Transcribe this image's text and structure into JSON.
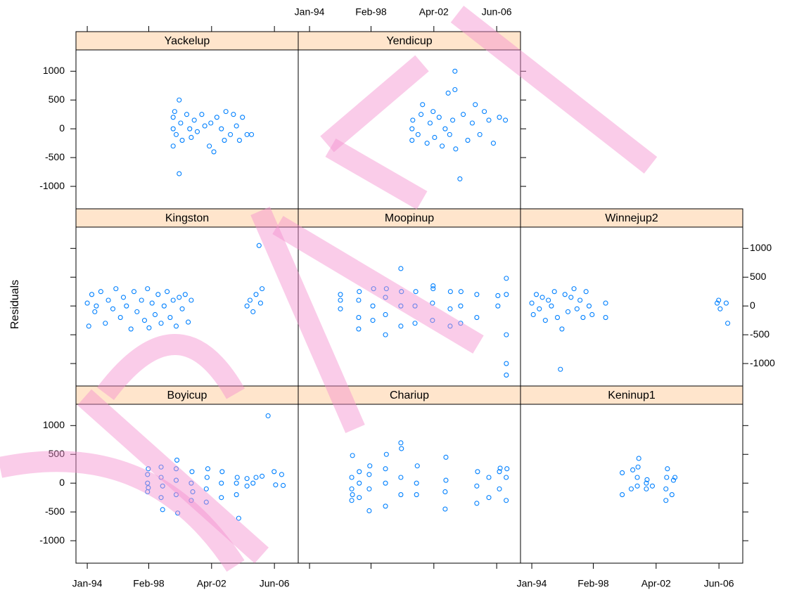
{
  "chart_data": {
    "type": "scatter",
    "ylabel": "Residuals",
    "xlim": [
      1993.25,
      2008.0
    ],
    "ylim": [
      -1390,
      1370
    ],
    "xticks": [
      {
        "value": 1994.0,
        "label": "Jan-94"
      },
      {
        "value": 1998.08,
        "label": "Feb-98"
      },
      {
        "value": 2002.25,
        "label": "Apr-02"
      },
      {
        "value": 2006.42,
        "label": "Jun-06"
      }
    ],
    "yticks": [
      -1000,
      -500,
      0,
      500,
      1000
    ],
    "color": "#0080ff",
    "panels": [
      {
        "name": "Boyicup",
        "x": [
          1998.0,
          1998.0,
          1998.0,
          1998.05,
          1998.05,
          1998.9,
          1998.9,
          1998.9,
          1999.0,
          1999.0,
          1999.9,
          1999.9,
          1999.9,
          1999.95,
          2000.0,
          2000.9,
          2000.9,
          2000.95,
          2001.0,
          2001.9,
          2001.9,
          2001.95,
          2002.0,
          2002.9,
          2002.9,
          2002.95,
          2003.9,
          2003.9,
          2003.95,
          2004.05,
          2004.6,
          2004.6,
          2005.0,
          2005.2,
          2005.6,
          2006.0,
          2006.4,
          2006.5,
          2006.9,
          2007.0
        ],
        "values": [
          -150,
          0,
          150,
          250,
          -80,
          -250,
          100,
          280,
          -460,
          -50,
          -200,
          50,
          250,
          400,
          -520,
          -300,
          0,
          200,
          -150,
          -330,
          -100,
          100,
          250,
          -250,
          0,
          200,
          -200,
          0,
          100,
          -610,
          -50,
          80,
          0,
          100,
          120,
          1170,
          200,
          -30,
          150,
          -40
        ]
      },
      {
        "name": "Chariup",
        "x": [
          1996.8,
          1996.8,
          1996.8,
          1996.85,
          1996.85,
          1997.3,
          1997.3,
          1997.3,
          1997.96,
          1997.96,
          1997.96,
          1998.0,
          1999.04,
          1999.04,
          1999.04,
          1999.1,
          2000.06,
          2000.06,
          2000.06,
          2000.1,
          2001.1,
          2001.1,
          2001.15,
          2003.0,
          2003.0,
          2003.05,
          2003.05,
          2005.1,
          2005.1,
          2005.15,
          2005.9,
          2005.9,
          2006.6,
          2006.6,
          2006.65,
          2007.05,
          2007.05,
          2007.1
        ],
        "values": [
          -300,
          -100,
          100,
          480,
          -200,
          -250,
          0,
          200,
          -480,
          -100,
          150,
          300,
          -400,
          0,
          250,
          500,
          -200,
          100,
          700,
          600,
          -200,
          0,
          300,
          -450,
          -150,
          50,
          450,
          -350,
          -50,
          200,
          -250,
          100,
          200,
          -100,
          260,
          -300,
          100,
          250
        ]
      },
      {
        "name": "Keninup1",
        "x": [
          2000.0,
          2000.0,
          2000.6,
          2000.7,
          2001.0,
          2001.0,
          2001.05,
          2001.1,
          2001.6,
          2001.6,
          2001.65,
          2002.0,
          2002.9,
          2002.9,
          2002.95,
          2003.0,
          2003.3,
          2003.4,
          2003.5
        ],
        "values": [
          -200,
          180,
          -100,
          230,
          -50,
          100,
          280,
          430,
          -100,
          0,
          60,
          -50,
          -300,
          -100,
          100,
          250,
          -200,
          50,
          100
        ]
      },
      {
        "name": "Kingston",
        "x": [
          1994.0,
          1994.1,
          1994.3,
          1994.5,
          1994.6,
          1994.9,
          1995.2,
          1995.4,
          1995.7,
          1995.9,
          1996.2,
          1996.4,
          1996.6,
          1996.9,
          1997.1,
          1997.3,
          1997.6,
          1997.8,
          1998.0,
          1998.1,
          1998.3,
          1998.5,
          1998.7,
          1998.9,
          1999.1,
          1999.3,
          1999.5,
          1999.7,
          1999.9,
          2000.1,
          2000.3,
          2000.5,
          2000.7,
          2000.9,
          2004.6,
          2004.8,
          2005.0,
          2005.2,
          2005.4,
          2005.5,
          2005.6
        ],
        "values": [
          50,
          -350,
          200,
          -100,
          0,
          250,
          -300,
          100,
          -50,
          300,
          -200,
          150,
          0,
          -400,
          250,
          -100,
          100,
          -250,
          300,
          -380,
          50,
          -150,
          200,
          -300,
          0,
          250,
          -200,
          100,
          -350,
          150,
          -50,
          200,
          -280,
          100,
          0,
          100,
          -100,
          200,
          1050,
          50,
          300
        ]
      },
      {
        "name": "Moopinup",
        "x": [
          1996.05,
          1996.05,
          1996.05,
          1997.26,
          1997.26,
          1997.26,
          1997.3,
          1998.2,
          1998.2,
          1998.25,
          1999.04,
          1999.04,
          1999.04,
          1999.1,
          2000.06,
          2000.06,
          2000.06,
          2000.1,
          2001.0,
          2001.0,
          2001.05,
          2002.16,
          2002.16,
          2002.2,
          2002.2,
          2003.33,
          2003.33,
          2003.35,
          2004.03,
          2004.03,
          2004.05,
          2005.1,
          2005.1,
          2006.5,
          2006.5,
          2007.06,
          2007.06,
          2007.06,
          2007.06,
          2007.06
        ],
        "values": [
          -50,
          100,
          200,
          -400,
          -200,
          100,
          250,
          -250,
          0,
          300,
          -500,
          -150,
          150,
          300,
          -350,
          0,
          650,
          250,
          -300,
          0,
          250,
          -250,
          50,
          300,
          350,
          -350,
          -50,
          250,
          -300,
          0,
          250,
          -200,
          200,
          0,
          180,
          -1200,
          -1000,
          -500,
          480,
          200
        ]
      },
      {
        "name": "Winnejup2",
        "x": [
          1994.0,
          1994.1,
          1994.3,
          1994.5,
          1994.7,
          1994.9,
          1995.1,
          1995.3,
          1995.5,
          1995.7,
          1995.9,
          1996.0,
          1996.2,
          1996.4,
          1996.6,
          1996.8,
          1997.0,
          1997.2,
          1997.4,
          1997.6,
          1997.8,
          1998.0,
          1998.9,
          1998.9,
          2006.3,
          2006.4,
          2006.5,
          2006.9,
          2007.0
        ],
        "values": [
          50,
          -150,
          200,
          -50,
          150,
          -250,
          100,
          0,
          250,
          -200,
          -1100,
          -400,
          200,
          -100,
          150,
          300,
          -50,
          100,
          -200,
          250,
          0,
          -150,
          50,
          -200,
          50,
          100,
          -50,
          50,
          -300
        ]
      },
      {
        "name": "Yackelup",
        "x": [
          1999.7,
          1999.7,
          1999.7,
          1999.8,
          1999.9,
          2000.1,
          2000.1,
          2000.2,
          2000.3,
          2000.6,
          2000.8,
          2000.9,
          2001.1,
          2001.3,
          2001.6,
          2001.8,
          2002.1,
          2002.2,
          2002.4,
          2002.6,
          2002.9,
          2003.1,
          2003.2,
          2003.5,
          2003.7,
          2003.9,
          2004.1,
          2004.3,
          2004.6,
          2004.9
        ],
        "values": [
          -300,
          0,
          200,
          300,
          -100,
          500,
          -780,
          100,
          -200,
          250,
          0,
          -150,
          150,
          -50,
          250,
          50,
          -300,
          100,
          -400,
          200,
          0,
          -200,
          300,
          -100,
          250,
          50,
          -200,
          200,
          -100,
          -100
        ]
      },
      {
        "name": "Yendicup",
        "x": [
          2000.8,
          2000.8,
          2000.85,
          2001.2,
          2001.4,
          2001.5,
          2001.8,
          2002.0,
          2002.2,
          2002.3,
          2002.6,
          2002.8,
          2003.0,
          2003.2,
          2003.3,
          2003.5,
          2003.65,
          2003.65,
          2003.7,
          2003.98,
          2004.2,
          2004.5,
          2004.8,
          2005.0,
          2005.3,
          2005.6,
          2005.9,
          2006.2,
          2006.6,
          2007.0
        ],
        "values": [
          -200,
          0,
          150,
          -100,
          250,
          420,
          -250,
          100,
          300,
          -150,
          200,
          -300,
          0,
          620,
          -100,
          150,
          1000,
          680,
          -350,
          -870,
          250,
          -200,
          100,
          420,
          -100,
          300,
          150,
          -250,
          200,
          150
        ]
      }
    ]
  }
}
